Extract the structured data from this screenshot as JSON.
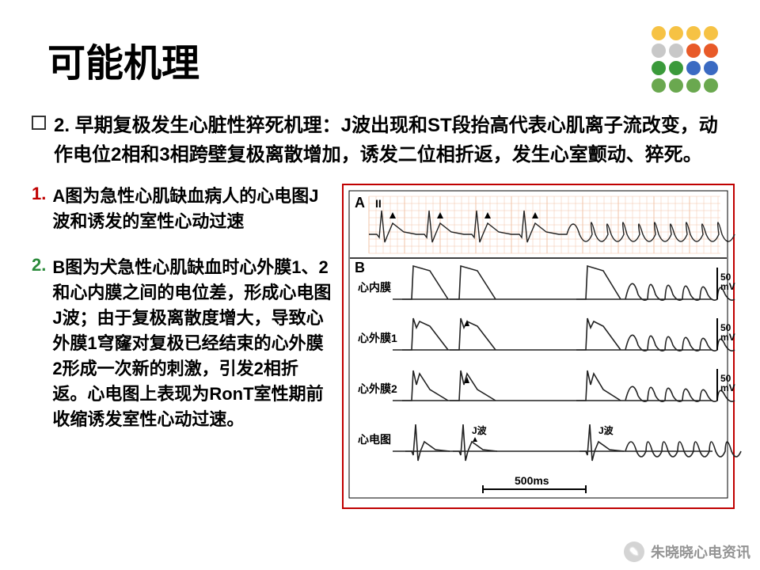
{
  "title": "可能机理",
  "main_bullet": "2. 早期复极发生心脏性猝死机理：J波出现和ST段抬高代表心肌离子流改变，动作电位2相和3相跨壁复极离散增加，诱发二位相折返，发生心室颤动、猝死。",
  "items": [
    {
      "num": "1.",
      "num_color": "#c00000",
      "text": "A图为急性心肌缺血病人的心电图J波和诱发的室性心动过速"
    },
    {
      "num": "2.",
      "num_color": "#2a8a3a",
      "text": "B图为犬急性心肌缺血时心外膜1、2和心内膜之间的电位差，形成心电图J波；由于复极离散度增大，导致心外膜1穹窿对复极已经结束的心外膜2形成一次新的刺激，引发2相折返。心电图上表现为RonT室性期前收缩诱发室性心动过速。"
    }
  ],
  "figure": {
    "panel_a": "A",
    "lead_label": "II",
    "panel_b": "B",
    "traces": [
      "心内膜",
      "心外膜1",
      "心外膜2",
      "心电图"
    ],
    "jwave": "J波",
    "y_scale": "50\nmV",
    "x_scale": "500ms",
    "grid_color": "#f2c4a8",
    "waveform_color": "#222222",
    "border_color": "#c00000",
    "background": "#ffffff"
  },
  "deco": {
    "colors": [
      [
        "#f6c244",
        "#f6c244",
        "#f6c244",
        "#f6c244"
      ],
      [
        "#c8c8c8",
        "#c8c8c8",
        "#e85a28",
        "#e85a28"
      ],
      [
        "#3a9a3a",
        "#3a9a3a",
        "#3a6ac2",
        "#3a6ac2"
      ],
      [
        "#6aa84f",
        "#6aa84f",
        "#6aa84f",
        "#6aa84f"
      ]
    ],
    "r": 9,
    "gap": 22
  },
  "watermark": {
    "icon": "✎",
    "text": "朱晓晓心电资讯"
  }
}
